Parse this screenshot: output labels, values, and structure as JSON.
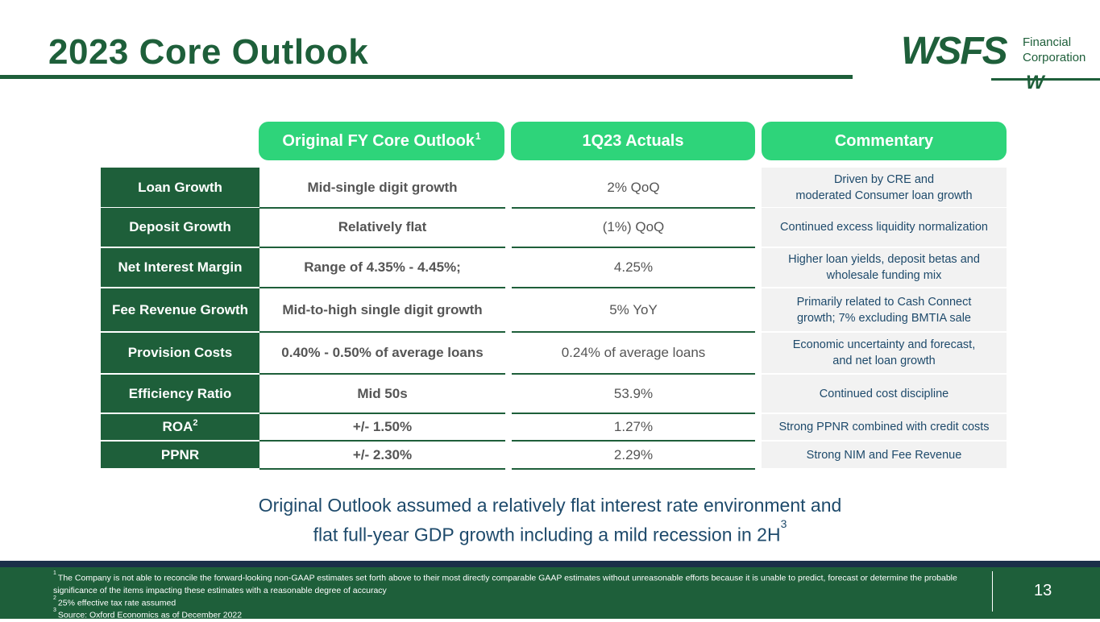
{
  "slide": {
    "title": "2023 Core Outlook",
    "page_number": "13"
  },
  "logo": {
    "wordmark": "WSFS",
    "line1": "Financial",
    "line2": "Corporation",
    "mark": "W"
  },
  "headers": {
    "outlook": "Original FY Core Outlook",
    "outlook_sup": "1",
    "actuals": "1Q23 Actuals",
    "commentary": "Commentary"
  },
  "rows": [
    {
      "label": "Loan Growth",
      "label_sup": "",
      "outlook": "Mid-single digit growth",
      "actual": "2% QoQ",
      "comment_1": "Driven by CRE and",
      "comment_2": "moderated Consumer loan growth"
    },
    {
      "label": "Deposit Growth",
      "label_sup": "",
      "outlook": "Relatively flat",
      "actual": "(1%) QoQ",
      "comment_1": "Continued excess liquidity normalization",
      "comment_2": ""
    },
    {
      "label": "Net Interest Margin",
      "label_sup": "",
      "outlook": "Range of 4.35% - 4.45%;",
      "actual": "4.25%",
      "comment_1": "Higher loan yields, deposit betas and",
      "comment_2": "wholesale funding mix"
    },
    {
      "label": "Fee Revenue Growth",
      "label_sup": "",
      "outlook": "Mid-to-high single digit growth",
      "actual": "5% YoY",
      "comment_1": "Primarily related to Cash Connect",
      "comment_2": "growth; 7% excluding BMTIA sale"
    },
    {
      "label": "Provision Costs",
      "label_sup": "",
      "outlook": "0.40% - 0.50% of average loans",
      "actual": "0.24% of average loans",
      "comment_1": "Economic uncertainty and forecast,",
      "comment_2": "and net loan growth"
    },
    {
      "label": "Efficiency Ratio",
      "label_sup": "",
      "outlook": "Mid 50s",
      "actual": "53.9%",
      "comment_1": "Continued cost discipline",
      "comment_2": ""
    },
    {
      "label": "ROA",
      "label_sup": "2",
      "outlook": "+/- 1.50%",
      "actual": "1.27%",
      "comment_1": "Strong PPNR combined with credit costs",
      "comment_2": ""
    },
    {
      "label": "PPNR",
      "label_sup": "",
      "outlook": "+/- 2.30%",
      "actual": "2.29%",
      "comment_1": "Strong NIM and Fee Revenue",
      "comment_2": ""
    }
  ],
  "summary": {
    "line1": "Original Outlook assumed a relatively flat interest rate environment and",
    "line2": "flat full-year GDP growth including a mild recession in 2H",
    "sup": "3"
  },
  "footnotes": [
    {
      "num": "1",
      "text": "The Company is not able to reconcile the forward-looking non-GAAP estimates set forth above to their most directly comparable GAAP estimates without unreasonable efforts because it is unable to predict, forecast or determine the probable significance of the items impacting these estimates with a reasonable degree of accuracy"
    },
    {
      "num": "2",
      "text": "25% effective tax rate assumed"
    },
    {
      "num": "3",
      "text": "Source: Oxford Economics as of December 2022"
    }
  ],
  "colors": {
    "brand_green": "#1e5f3a",
    "accent_green": "#2ed47a",
    "navy": "#1a2f49",
    "text_blue": "#1e4a6b"
  }
}
